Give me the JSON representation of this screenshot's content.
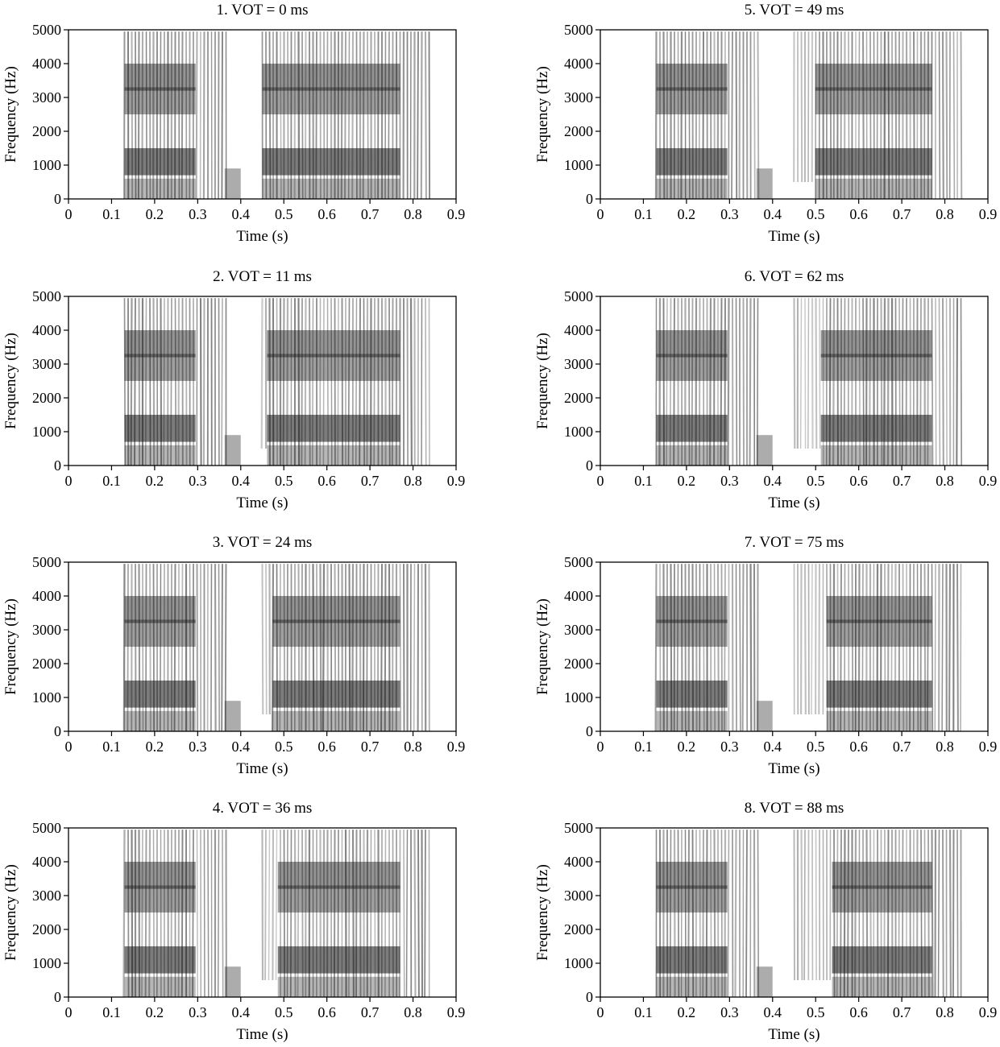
{
  "chart_data": [
    {
      "type": "heatmap",
      "title": "1. VOT = 0 ms",
      "xlabel": "Time (s)",
      "ylabel": "Frequency (Hz)",
      "xlim": [
        0,
        0.9
      ],
      "ylim": [
        0,
        5000
      ],
      "x_ticks": [
        "0",
        "0.1",
        "0.2",
        "0.3",
        "0.4",
        "0.5",
        "0.6",
        "0.7",
        "0.8",
        "0.9"
      ],
      "y_ticks": [
        "0",
        "1000",
        "2000",
        "3000",
        "4000",
        "5000"
      ],
      "segments": [
        {
          "start": 0.13,
          "end": 0.37
        },
        {
          "start": 0.45,
          "end": 0.845,
          "aspiration_end": 0.45
        }
      ],
      "formants_hz": [
        1200,
        2900,
        3500
      ]
    },
    {
      "type": "heatmap",
      "title": "2. VOT = 11 ms",
      "xlabel": "Time (s)",
      "ylabel": "Frequency (Hz)",
      "xlim": [
        0,
        0.9
      ],
      "ylim": [
        0,
        5000
      ],
      "x_ticks": [
        "0",
        "0.1",
        "0.2",
        "0.3",
        "0.4",
        "0.5",
        "0.6",
        "0.7",
        "0.8",
        "0.9"
      ],
      "y_ticks": [
        "0",
        "1000",
        "2000",
        "3000",
        "4000",
        "5000"
      ],
      "segments": [
        {
          "start": 0.13,
          "end": 0.37
        },
        {
          "start": 0.45,
          "end": 0.845,
          "aspiration_end": 0.461
        }
      ],
      "formants_hz": [
        1200,
        2900,
        3500
      ]
    },
    {
      "type": "heatmap",
      "title": "3. VOT = 24 ms",
      "xlabel": "Time (s)",
      "ylabel": "Frequency (Hz)",
      "xlim": [
        0,
        0.9
      ],
      "ylim": [
        0,
        5000
      ],
      "x_ticks": [
        "0",
        "0.1",
        "0.2",
        "0.3",
        "0.4",
        "0.5",
        "0.6",
        "0.7",
        "0.8",
        "0.9"
      ],
      "y_ticks": [
        "0",
        "1000",
        "2000",
        "3000",
        "4000",
        "5000"
      ],
      "segments": [
        {
          "start": 0.13,
          "end": 0.37
        },
        {
          "start": 0.45,
          "end": 0.845,
          "aspiration_end": 0.474
        }
      ],
      "formants_hz": [
        1200,
        2900,
        3500
      ]
    },
    {
      "type": "heatmap",
      "title": "4. VOT = 36 ms",
      "xlabel": "Time (s)",
      "ylabel": "Frequency (Hz)",
      "xlim": [
        0,
        0.9
      ],
      "ylim": [
        0,
        5000
      ],
      "x_ticks": [
        "0",
        "0.1",
        "0.2",
        "0.3",
        "0.4",
        "0.5",
        "0.6",
        "0.7",
        "0.8",
        "0.9"
      ],
      "y_ticks": [
        "0",
        "1000",
        "2000",
        "3000",
        "4000",
        "5000"
      ],
      "segments": [
        {
          "start": 0.13,
          "end": 0.37
        },
        {
          "start": 0.45,
          "end": 0.845,
          "aspiration_end": 0.486
        }
      ],
      "formants_hz": [
        1200,
        2900,
        3500
      ]
    },
    {
      "type": "heatmap",
      "title": "5. VOT = 49 ms",
      "xlabel": "Time (s)",
      "ylabel": "Frequency (Hz)",
      "xlim": [
        0,
        0.9
      ],
      "ylim": [
        0,
        5000
      ],
      "x_ticks": [
        "0",
        "0.1",
        "0.2",
        "0.3",
        "0.4",
        "0.5",
        "0.6",
        "0.7",
        "0.8",
        "0.9"
      ],
      "y_ticks": [
        "0",
        "1000",
        "2000",
        "3000",
        "4000",
        "5000"
      ],
      "segments": [
        {
          "start": 0.13,
          "end": 0.37
        },
        {
          "start": 0.45,
          "end": 0.845,
          "aspiration_end": 0.499
        }
      ],
      "formants_hz": [
        1200,
        2900,
        3500
      ]
    },
    {
      "type": "heatmap",
      "title": "6. VOT = 62 ms",
      "xlabel": "Time (s)",
      "ylabel": "Frequency (Hz)",
      "xlim": [
        0,
        0.9
      ],
      "ylim": [
        0,
        5000
      ],
      "x_ticks": [
        "0",
        "0.1",
        "0.2",
        "0.3",
        "0.4",
        "0.5",
        "0.6",
        "0.7",
        "0.8",
        "0.9"
      ],
      "y_ticks": [
        "0",
        "1000",
        "2000",
        "3000",
        "4000",
        "5000"
      ],
      "segments": [
        {
          "start": 0.13,
          "end": 0.37
        },
        {
          "start": 0.45,
          "end": 0.845,
          "aspiration_end": 0.512
        }
      ],
      "formants_hz": [
        1200,
        2900,
        3500
      ]
    },
    {
      "type": "heatmap",
      "title": "7. VOT = 75 ms",
      "xlabel": "Time (s)",
      "ylabel": "Frequency (Hz)",
      "xlim": [
        0,
        0.9
      ],
      "ylim": [
        0,
        5000
      ],
      "x_ticks": [
        "0",
        "0.1",
        "0.2",
        "0.3",
        "0.4",
        "0.5",
        "0.6",
        "0.7",
        "0.8",
        "0.9"
      ],
      "y_ticks": [
        "0",
        "1000",
        "2000",
        "3000",
        "4000",
        "5000"
      ],
      "segments": [
        {
          "start": 0.13,
          "end": 0.37
        },
        {
          "start": 0.45,
          "end": 0.845,
          "aspiration_end": 0.525
        }
      ],
      "formants_hz": [
        1200,
        2900,
        3500
      ]
    },
    {
      "type": "heatmap",
      "title": "8. VOT = 88 ms",
      "xlabel": "Time (s)",
      "ylabel": "Frequency (Hz)",
      "xlim": [
        0,
        0.9
      ],
      "ylim": [
        0,
        5000
      ],
      "x_ticks": [
        "0",
        "0.1",
        "0.2",
        "0.3",
        "0.4",
        "0.5",
        "0.6",
        "0.7",
        "0.8",
        "0.9"
      ],
      "y_ticks": [
        "0",
        "1000",
        "2000",
        "3000",
        "4000",
        "5000"
      ],
      "segments": [
        {
          "start": 0.13,
          "end": 0.37
        },
        {
          "start": 0.45,
          "end": 0.845,
          "aspiration_end": 0.538
        }
      ],
      "formants_hz": [
        1200,
        2900,
        3500
      ]
    }
  ],
  "colors": {
    "background": "#ffffff",
    "ink": "#000000",
    "spectrogram_dark": "#111111"
  }
}
